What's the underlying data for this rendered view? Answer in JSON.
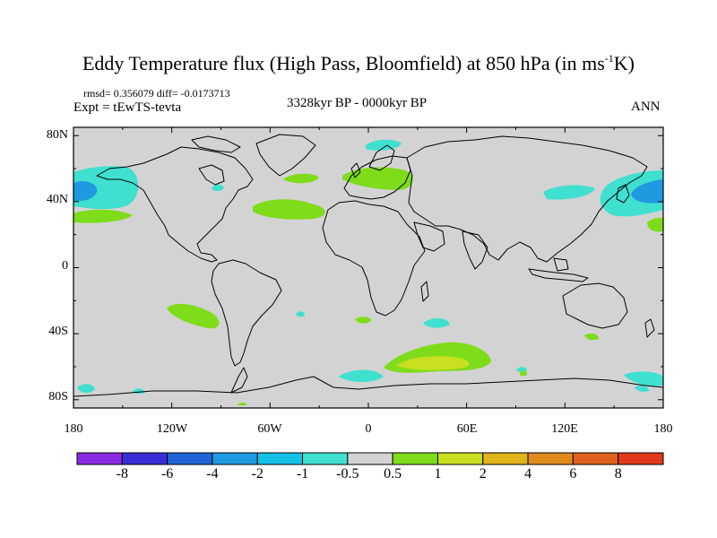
{
  "title": {
    "main": "Eddy Temperature flux (High Pass, Bloomfield) at 850 hPa (in ms",
    "sup": "-1",
    "end": "K)"
  },
  "stats": "rmsd= 0.356079 diff= -0.0173713",
  "experiment": "Expt = tEwTS-tevta",
  "period": "3328kyr BP - 0000kyr BP",
  "season": "ANN",
  "map": {
    "lat_labels": [
      "80N",
      "40N",
      "0",
      "40S",
      "80S"
    ],
    "lon_labels": [
      "180",
      "120W",
      "60W",
      "0",
      "60E",
      "120E",
      "180"
    ],
    "background_color": "#d3d3d3"
  },
  "colorbar": {
    "labels": [
      "-8",
      "-6",
      "-4",
      "-2",
      "-1",
      "-0.5",
      "0.5",
      "1",
      "2",
      "4",
      "6",
      "8"
    ],
    "colors": [
      "#8a2be2",
      "#3a2fd6",
      "#1f64d8",
      "#1e9be0",
      "#14c0e6",
      "#40e0d0",
      "#d3d3d3",
      "#7fdc1a",
      "#c8e020",
      "#e0b41a",
      "#e08a1e",
      "#e0621e",
      "#e03a1a"
    ]
  }
}
